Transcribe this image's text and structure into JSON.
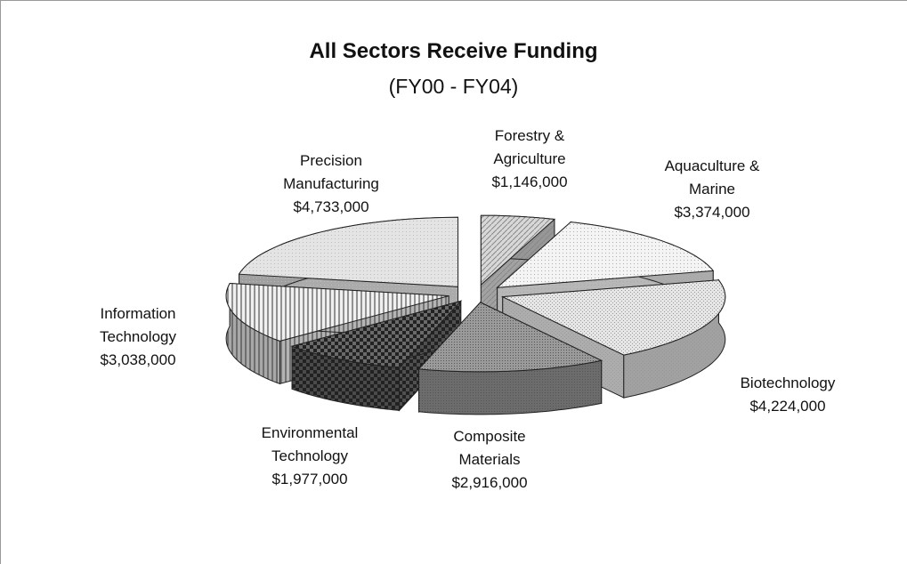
{
  "chart_data": {
    "type": "pie",
    "title": "All Sectors Receive Funding",
    "subtitle": "(FY00 - FY04)",
    "categories": [
      "Forestry & Agriculture",
      "Aquaculture & Marine",
      "Biotechnology",
      "Composite Materials",
      "Environmental Technology",
      "Information Technology",
      "Precision Manufacturing"
    ],
    "values": [
      1146000,
      3374000,
      4224000,
      2916000,
      1977000,
      3038000,
      4733000
    ],
    "value_labels": [
      "$1,146,000",
      "$3,374,000",
      "$4,224,000",
      "$2,916,000",
      "$1,977,000",
      "$3,038,000",
      "$4,733,000"
    ],
    "colors": [
      "#d8d8d8",
      "#f4f4f4",
      "#e6e6e6",
      "#9a9a9a",
      "#6a6a6a",
      "#f0f0f0",
      "#e4e4e4"
    ]
  }
}
